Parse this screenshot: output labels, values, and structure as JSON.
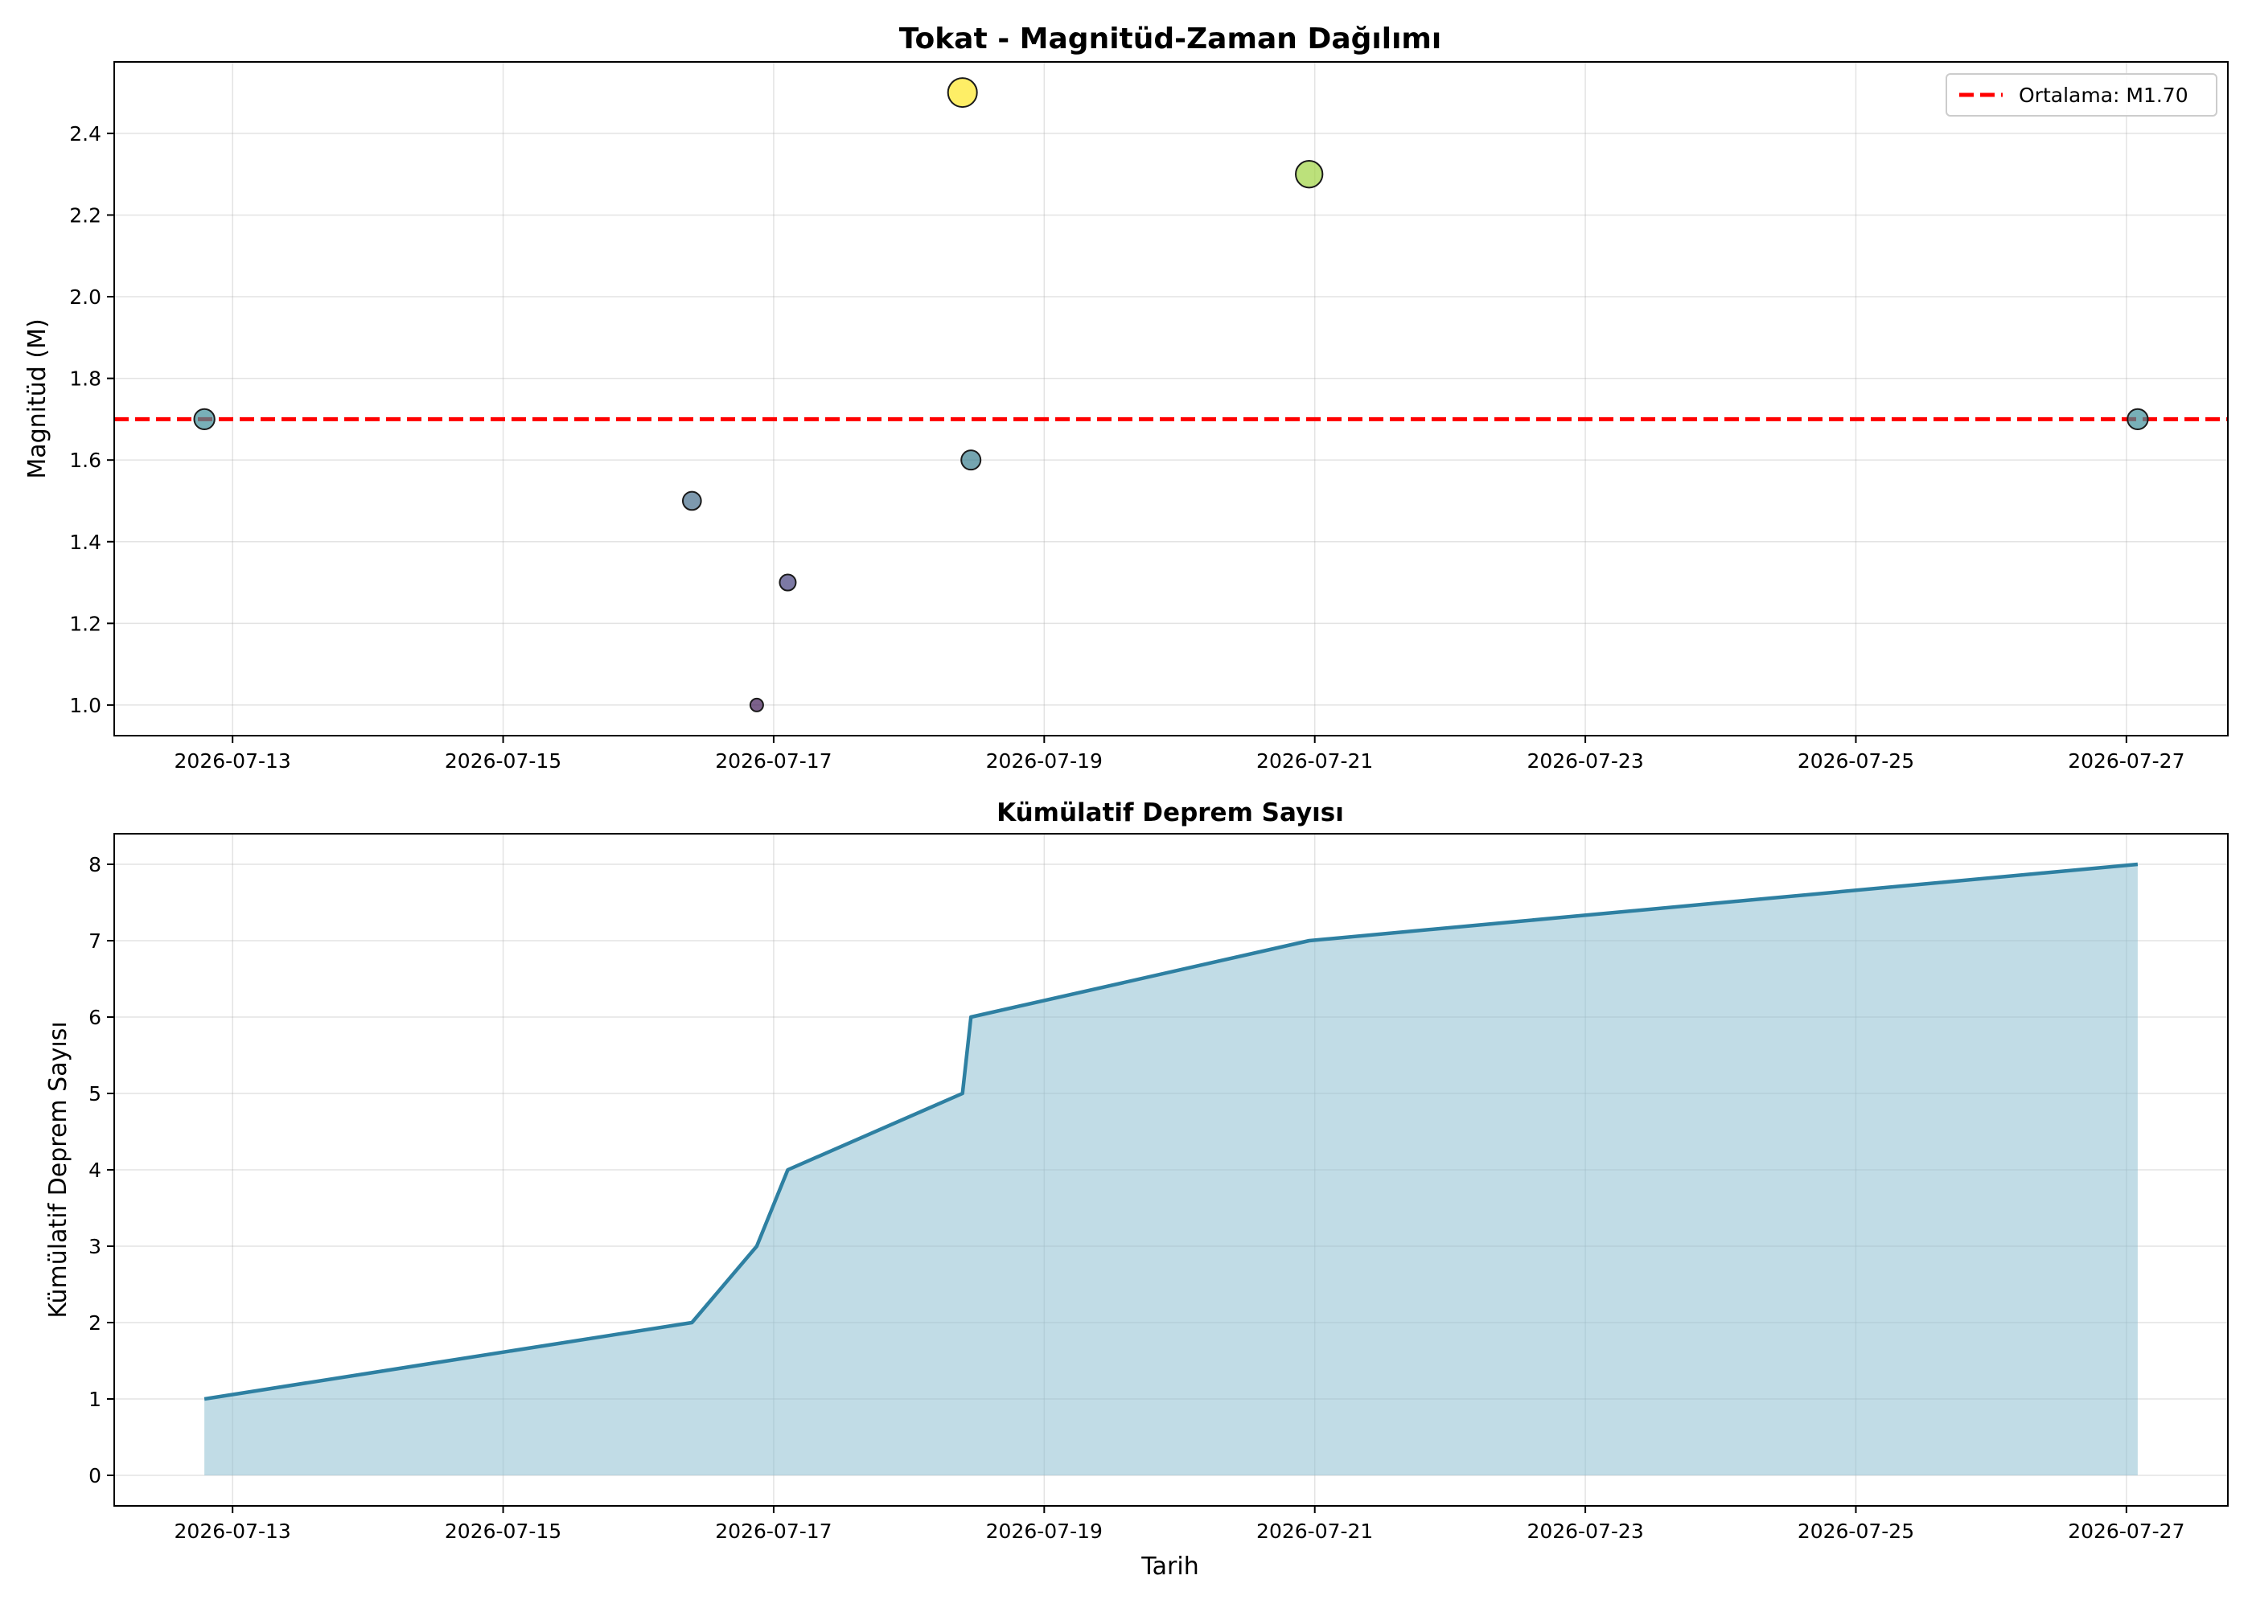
{
  "chart_data": [
    {
      "type": "scatter",
      "title": "Tokat - Magnitüd-Zaman Dağılımı",
      "xlabel": "",
      "ylabel": "Magnitüd (M)",
      "x_ticks": [
        "2026-07-13",
        "2026-07-15",
        "2026-07-17",
        "2026-07-19",
        "2026-07-21",
        "2026-07-23",
        "2026-07-25",
        "2026-07-27"
      ],
      "y_ticks": [
        "1.0",
        "1.2",
        "1.4",
        "1.6",
        "1.8",
        "2.0",
        "2.2",
        "2.4"
      ],
      "xlim": [
        "2026-07-12T03:00",
        "2026-07-27T18:00"
      ],
      "ylim": [
        0.925,
        2.575
      ],
      "grid": true,
      "points": [
        {
          "x": "2026-07-12T19:00",
          "y": 1.7,
          "color": "#3f8f9a"
        },
        {
          "x": "2026-07-16T09:30",
          "y": 1.5,
          "color": "#466e8c"
        },
        {
          "x": "2026-07-16T21:00",
          "y": 1.0,
          "color": "#441f5a"
        },
        {
          "x": "2026-07-17T02:30",
          "y": 1.3,
          "color": "#44407d"
        },
        {
          "x": "2026-07-18T09:30",
          "y": 2.5,
          "color": "#fde725"
        },
        {
          "x": "2026-07-18T11:00",
          "y": 1.6,
          "color": "#3b7f8e"
        },
        {
          "x": "2026-07-20T23:00",
          "y": 2.3,
          "color": "#a0d443"
        },
        {
          "x": "2026-07-27T02:00",
          "y": 1.7,
          "color": "#3f8f9a"
        }
      ],
      "mean_line": {
        "value": 1.7,
        "label": "Ortalama: M1.70",
        "color": "#ff0000"
      },
      "legend": {
        "position": "top-right",
        "entries": [
          "Ortalama: M1.70"
        ]
      }
    },
    {
      "type": "area",
      "title": "Kümülatif Deprem Sayısı",
      "xlabel": "Tarih",
      "ylabel": "Kümülatif Deprem Sayısı",
      "x_ticks": [
        "2026-07-13",
        "2026-07-15",
        "2026-07-17",
        "2026-07-19",
        "2026-07-21",
        "2026-07-23",
        "2026-07-25",
        "2026-07-27"
      ],
      "y_ticks": [
        "0",
        "1",
        "2",
        "3",
        "4",
        "5",
        "6",
        "7",
        "8"
      ],
      "xlim": [
        "2026-07-12T03:00",
        "2026-07-27T18:00"
      ],
      "ylim": [
        -0.4,
        8.4
      ],
      "grid": true,
      "line_color": "#2e80a2",
      "fill_color": "#8ebfd2",
      "x": [
        "2026-07-12T19:00",
        "2026-07-16T09:30",
        "2026-07-16T21:00",
        "2026-07-17T02:30",
        "2026-07-18T09:30",
        "2026-07-18T11:00",
        "2026-07-20T23:00",
        "2026-07-27T02:00"
      ],
      "values": [
        1,
        2,
        3,
        4,
        5,
        6,
        7,
        8
      ]
    }
  ]
}
